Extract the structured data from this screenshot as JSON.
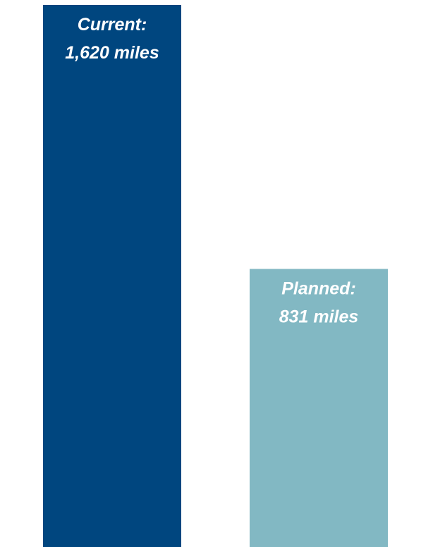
{
  "chart_data": {
    "type": "bar",
    "categories": [
      "Current",
      "Planned"
    ],
    "values": [
      1620,
      831
    ],
    "unit": "miles",
    "labels": [
      {
        "line1": "Current:",
        "line2": "1,620 miles"
      },
      {
        "line1": "Planned:",
        "line2": "831 miles"
      }
    ],
    "colors": [
      "#00467f",
      "#82b8c3"
    ],
    "title": "",
    "xlabel": "",
    "ylabel": "",
    "ylim": [
      0,
      1620
    ],
    "grid": false,
    "legend": "none"
  }
}
